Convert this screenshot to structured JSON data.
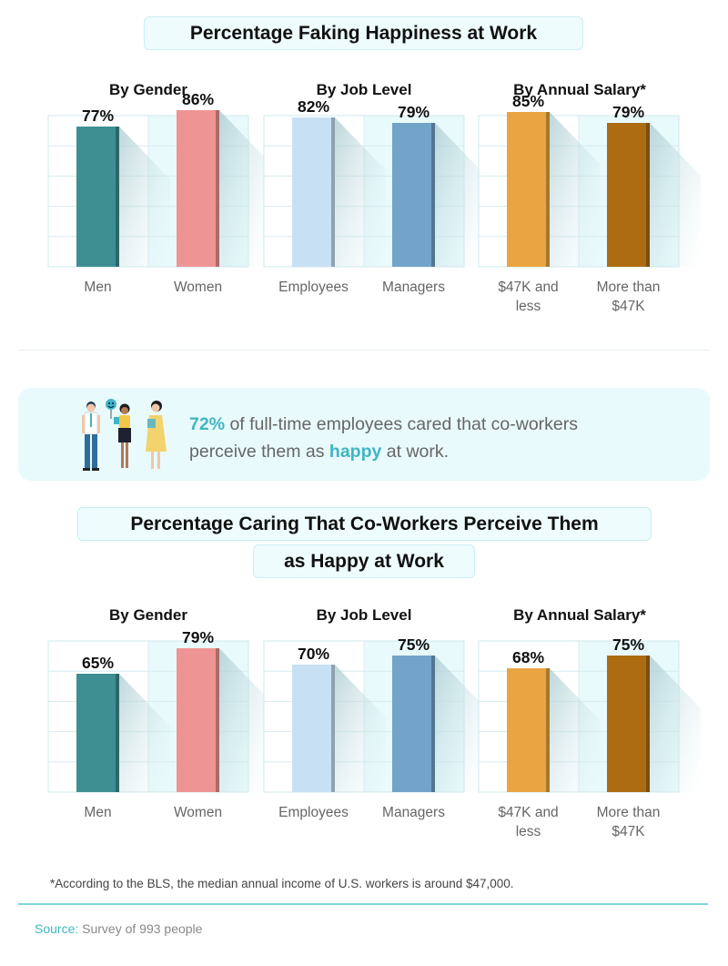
{
  "chart_data": [
    {
      "type": "bar",
      "title": "Percentage Faking Happiness at Work",
      "panels": [
        {
          "subtitle": "By Gender",
          "categories": [
            "Men",
            "Women"
          ],
          "values": [
            77,
            86
          ],
          "labels": [
            "77%",
            "86%"
          ],
          "colors": [
            "#3e8f92",
            "#ef9494"
          ]
        },
        {
          "subtitle": "By Job Level",
          "categories": [
            "Employees",
            "Managers"
          ],
          "values": [
            82,
            79
          ],
          "labels": [
            "82%",
            "79%"
          ],
          "colors": [
            "#c8e0f4",
            "#72a4c9"
          ]
        },
        {
          "subtitle": "By Annual Salary*",
          "categories": [
            "$47K and less",
            "More than $47K"
          ],
          "values": [
            85,
            79
          ],
          "labels": [
            "85%",
            "79%"
          ],
          "colors": [
            "#e8a541",
            "#ad6c12"
          ]
        }
      ]
    },
    {
      "type": "bar",
      "title_line1": "Percentage Caring That Co-Workers Perceive Them",
      "title_line2": "as Happy at Work",
      "panels": [
        {
          "subtitle": "By Gender",
          "categories": [
            "Men",
            "Women"
          ],
          "values": [
            65,
            79
          ],
          "labels": [
            "65%",
            "79%"
          ],
          "colors": [
            "#3e8f92",
            "#ef9494"
          ]
        },
        {
          "subtitle": "By Job Level",
          "categories": [
            "Employees",
            "Managers"
          ],
          "values": [
            70,
            75
          ],
          "labels": [
            "70%",
            "75%"
          ],
          "colors": [
            "#c8e0f4",
            "#72a4c9"
          ]
        },
        {
          "subtitle": "By Annual Salary*",
          "categories": [
            "$47K and less",
            "More than $47K"
          ],
          "values": [
            68,
            75
          ],
          "labels": [
            "68%",
            "75%"
          ],
          "colors": [
            "#e8a541",
            "#ad6c12"
          ]
        }
      ]
    }
  ],
  "callout": {
    "pct": "72%",
    "text_a": " of full-time employees cared that co-workers",
    "text_b": "perceive them as ",
    "highlight": "happy",
    "text_c": " at work."
  },
  "footnote": "*According to the BLS, the median annual income of U.S. workers is around $47,000.",
  "source": {
    "label": "Source:",
    "text": " Survey of 993 people"
  }
}
